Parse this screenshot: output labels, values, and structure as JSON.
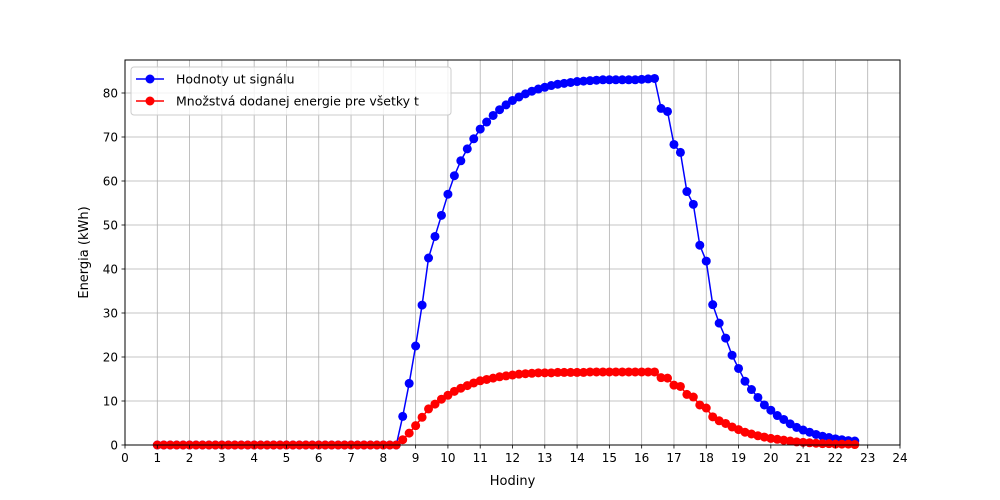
{
  "chart_data": {
    "type": "line",
    "xlabel": "Hodiny",
    "ylabel": "Energia (kWh)",
    "xlim": [
      0,
      24
    ],
    "ylim": [
      0,
      87.5
    ],
    "x_ticks": [
      0,
      1,
      2,
      3,
      4,
      5,
      6,
      7,
      8,
      9,
      10,
      11,
      12,
      13,
      14,
      15,
      16,
      17,
      18,
      19,
      20,
      21,
      22,
      23,
      24
    ],
    "y_ticks": [
      0,
      10,
      20,
      30,
      40,
      50,
      60,
      70,
      80
    ],
    "grid": true,
    "legend_position": "top-left",
    "x_start": 1,
    "x_step": 0.2,
    "series": [
      {
        "name": "Hodnoty ut signálu",
        "color": "#0000ff",
        "marker": "circle",
        "values": [
          0,
          0,
          0,
          0,
          0,
          0,
          0,
          0,
          0,
          0,
          0,
          0,
          0,
          0,
          0,
          0,
          0,
          0,
          0,
          0,
          0,
          0,
          0,
          0,
          0,
          0,
          0,
          0,
          0,
          0,
          0,
          0,
          0,
          0,
          0,
          0,
          0,
          0,
          6.5,
          14,
          22.5,
          31.8,
          42.5,
          47.4,
          52.2,
          57,
          61.2,
          64.6,
          67.3,
          69.6,
          71.8,
          73.4,
          74.9,
          76.2,
          77.3,
          78.3,
          79.1,
          79.8,
          80.4,
          80.9,
          81.3,
          81.7,
          82,
          82.2,
          82.4,
          82.6,
          82.7,
          82.8,
          82.9,
          83,
          83,
          83,
          83,
          83,
          83,
          83.1,
          83.2,
          83.3,
          76.5,
          75.8,
          68.3,
          66.5,
          57.6,
          54.7,
          45.4,
          41.8,
          31.9,
          27.7,
          24.3,
          20.4,
          17.4,
          14.5,
          12.6,
          10.8,
          9.1,
          7.9,
          6.7,
          5.8,
          4.8,
          4,
          3.4,
          2.9,
          2.4,
          2,
          1.7,
          1.4,
          1.2,
          1,
          0.9
        ]
      },
      {
        "name": "Množstvá dodanej energie pre všetky t",
        "color": "#ff0000",
        "marker": "circle",
        "values": [
          0,
          0,
          0,
          0,
          0,
          0,
          0,
          0,
          0,
          0,
          0,
          0,
          0,
          0,
          0,
          0,
          0,
          0,
          0,
          0,
          0,
          0,
          0,
          0,
          0,
          0,
          0,
          0,
          0,
          0,
          0,
          0,
          0,
          0,
          0,
          0,
          0,
          0,
          1.2,
          2.7,
          4.4,
          6.3,
          8.2,
          9.3,
          10.4,
          11.3,
          12.2,
          12.9,
          13.5,
          14.1,
          14.6,
          14.9,
          15.2,
          15.5,
          15.7,
          15.9,
          16.1,
          16.2,
          16.3,
          16.4,
          16.4,
          16.4,
          16.5,
          16.5,
          16.5,
          16.5,
          16.5,
          16.6,
          16.6,
          16.6,
          16.6,
          16.6,
          16.6,
          16.6,
          16.6,
          16.6,
          16.6,
          16.6,
          15.3,
          15.2,
          13.6,
          13.3,
          11.5,
          10.9,
          9.1,
          8.4,
          6.4,
          5.5,
          4.9,
          4.1,
          3.5,
          2.9,
          2.5,
          2.1,
          1.8,
          1.5,
          1.3,
          1.1,
          0.9,
          0.7,
          0.6,
          0.5,
          0.4,
          0.3,
          0.3,
          0.2,
          0.2,
          0.2,
          0.1
        ]
      }
    ]
  }
}
